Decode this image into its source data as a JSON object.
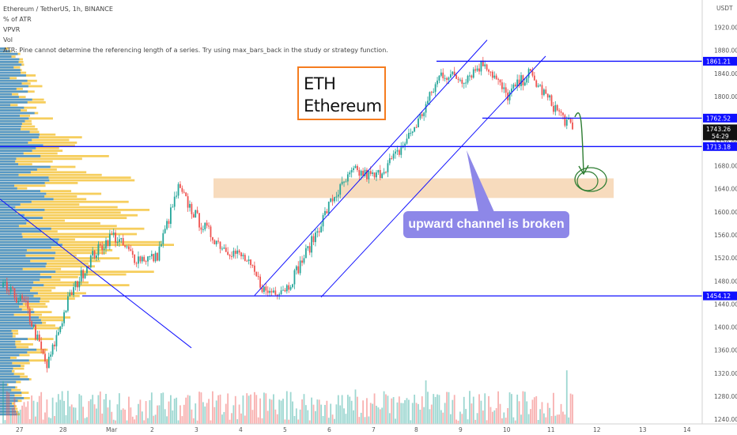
{
  "legend": {
    "symbol": "Ethereum / TetherUS, 1h, BINANCE",
    "lines": [
      "% of ATR",
      "VPVR",
      "Vol",
      "ATR: Pine cannot determine the referencing length of a series. Try using max_bars_back in the study or strategy function."
    ]
  },
  "title_box": {
    "line1": "ETH",
    "line2": "Ethereum"
  },
  "callout": "upward channel is broken",
  "currency": "USDT",
  "colors": {
    "up": "#26a69a",
    "down": "#ef5350",
    "line": "#1010ff",
    "zone": "#f2c79a",
    "callout": "#8d87e8",
    "title_border": "#f57c1f",
    "vpvr_blue": "#3d8fd6",
    "vpvr_yellow": "#f4c542",
    "arrow": "#2e7d32"
  },
  "chart_data": {
    "type": "candlestick",
    "title": "Ethereum / TetherUS, 1h, BINANCE",
    "yaxis_unit": "USDT",
    "ylim": [
      1232,
      1936
    ],
    "y_ticks": [
      1240,
      1280,
      1320,
      1360,
      1400,
      1440,
      1480,
      1520,
      1560,
      1600,
      1640,
      1680,
      1720,
      1760,
      1800,
      1840,
      1880,
      1920
    ],
    "x_ticks": [
      "27",
      "28",
      "Mar",
      "2",
      "3",
      "4",
      "5",
      "6",
      "7",
      "8",
      "9",
      "10",
      "11",
      "12",
      "13",
      "14"
    ],
    "horizontal_levels": [
      1861.21,
      1762.52,
      1713.18,
      1454.12
    ],
    "price_tags": [
      {
        "label": "1861.21",
        "value": 1861.21
      },
      {
        "label": "1762.52",
        "value": 1762.52
      },
      {
        "label": "1743.26",
        "value": 1743.26,
        "sub": "54:29"
      },
      {
        "label": "1713.18",
        "value": 1713.18
      },
      {
        "label": "1454.12",
        "value": 1454.12
      }
    ],
    "last_price": 1743.26,
    "countdown": "54:29",
    "zone": [
      1624,
      1658
    ],
    "series_close_approx": [
      {
        "date": "27",
        "close": 1470
      },
      {
        "date": "28",
        "close": 1440
      },
      {
        "date": "28",
        "close": 1330
      },
      {
        "date": "Mar",
        "close": 1450
      },
      {
        "date": "Mar",
        "close": 1520
      },
      {
        "date": "2",
        "close": 1560
      },
      {
        "date": "2",
        "close": 1520
      },
      {
        "date": "3",
        "close": 1520
      },
      {
        "date": "3",
        "close": 1640
      },
      {
        "date": "4",
        "close": 1580
      },
      {
        "date": "4",
        "close": 1540
      },
      {
        "date": "5",
        "close": 1520
      },
      {
        "date": "5",
        "close": 1460
      },
      {
        "date": "6",
        "close": 1470
      },
      {
        "date": "6",
        "close": 1540
      },
      {
        "date": "7",
        "close": 1620
      },
      {
        "date": "7",
        "close": 1670
      },
      {
        "date": "8",
        "close": 1660
      },
      {
        "date": "8",
        "close": 1700
      },
      {
        "date": "9",
        "close": 1760
      },
      {
        "date": "9",
        "close": 1840
      },
      {
        "date": "10",
        "close": 1830
      },
      {
        "date": "10",
        "close": 1860
      },
      {
        "date": "11",
        "close": 1800
      },
      {
        "date": "11",
        "close": 1840
      },
      {
        "date": "11",
        "close": 1790
      },
      {
        "date": "11",
        "close": 1743.26
      }
    ]
  }
}
